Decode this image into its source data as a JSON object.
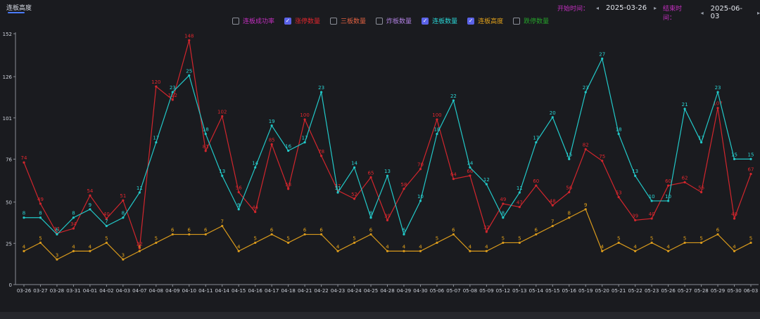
{
  "header": {
    "tab_label": "连板高度",
    "start_label": "开始时间：",
    "start_date": "2025-03-26",
    "end_label": "结束时间：",
    "end_date": "2025-06-03",
    "prev_icon": "◂",
    "next_icon": "▸"
  },
  "legend": [
    {
      "label": "连板成功率",
      "checked": false,
      "color": "#c42fc0"
    },
    {
      "label": "涨停数量",
      "checked": true,
      "color": "#e0262d"
    },
    {
      "label": "三板数量",
      "checked": false,
      "color": "#e06040"
    },
    {
      "label": "炸板数量",
      "checked": false,
      "color": "#b080e0"
    },
    {
      "label": "连板数量",
      "checked": true,
      "color": "#2ad6d6"
    },
    {
      "label": "连板高度",
      "checked": true,
      "color": "#e3a21a"
    },
    {
      "label": "跌停数量",
      "checked": false,
      "color": "#25a02a"
    }
  ],
  "chart_data": {
    "type": "line",
    "ylim": [
      0,
      152
    ],
    "yticks": [
      0,
      25,
      50,
      76,
      101,
      126,
      152
    ],
    "categories": [
      "03-26",
      "03-27",
      "03-28",
      "03-31",
      "04-01",
      "04-02",
      "04-03",
      "04-07",
      "04-08",
      "04-09",
      "04-10",
      "04-11",
      "04-14",
      "04-15",
      "04-16",
      "04-17",
      "04-18",
      "04-21",
      "04-22",
      "04-23",
      "04-24",
      "04-25",
      "04-28",
      "04-29",
      "04-30",
      "05-06",
      "05-07",
      "05-08",
      "05-09",
      "05-12",
      "05-13",
      "05-14",
      "05-15",
      "05-16",
      "05-19",
      "05-20",
      "05-21",
      "05-22",
      "05-23",
      "05-26",
      "05-27",
      "05-28",
      "05-29",
      "05-30",
      "06-03"
    ],
    "series": [
      {
        "name": "涨停数量",
        "color": "#d2262d",
        "label_color": "#e0262d",
        "scale": 1,
        "values": [
          74,
          49,
          31,
          34,
          54,
          40,
          51,
          22,
          120,
          112,
          148,
          81,
          102,
          56,
          44,
          85,
          58,
          100,
          78,
          57,
          52,
          65,
          39,
          58,
          70,
          100,
          64,
          66,
          32,
          49,
          47,
          60,
          48,
          56,
          82,
          75,
          53,
          39,
          40,
          60,
          62,
          56,
          107,
          40,
          67
        ]
      },
      {
        "name": "连板数量",
        "color": "#22c8c8",
        "label_color": "#2ad6d6",
        "scale": 5.07,
        "values": [
          8,
          8,
          6,
          8,
          9,
          7,
          8,
          11,
          17,
          23,
          25,
          18,
          13,
          9,
          14,
          19,
          16,
          17,
          23,
          11,
          14,
          8,
          13,
          6,
          10,
          18,
          22,
          14,
          12,
          8,
          11,
          17,
          20,
          15,
          23,
          27,
          18,
          13,
          10,
          10,
          21,
          17,
          23,
          15,
          15
        ]
      },
      {
        "name": "连板高度",
        "color": "#d99a1c",
        "label_color": "#e3a21a",
        "scale": 5.07,
        "values": [
          4,
          5,
          3,
          4,
          4,
          5,
          3,
          4,
          5,
          6,
          6,
          6,
          7,
          4,
          5,
          6,
          5,
          6,
          6,
          4,
          5,
          6,
          4,
          4,
          4,
          5,
          6,
          4,
          4,
          5,
          5,
          6,
          7,
          8,
          9,
          4,
          5,
          4,
          5,
          4,
          5,
          5,
          6,
          4,
          5
        ]
      }
    ]
  }
}
